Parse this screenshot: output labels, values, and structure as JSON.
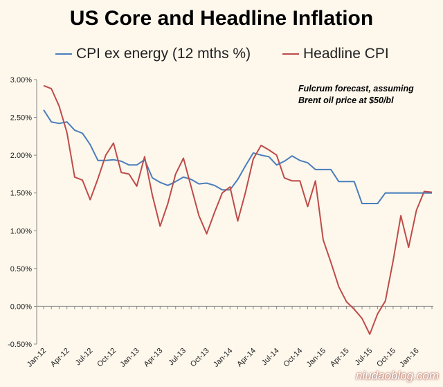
{
  "chart_data": {
    "type": "line",
    "title": "US Core and Headline Inflation",
    "xlabel": "",
    "ylabel": "",
    "ylim": [
      -0.5,
      3.0
    ],
    "y_ticks": [
      "-0.50%",
      "0.00%",
      "0.50%",
      "1.00%",
      "1.50%",
      "2.00%",
      "2.50%",
      "3.00%"
    ],
    "y_tick_values": [
      -0.5,
      0.0,
      0.5,
      1.0,
      1.5,
      2.0,
      2.5,
      3.0
    ],
    "x_tick_labels": [
      "Jan-12",
      "Apr-12",
      "Jul-12",
      "Oct-12",
      "Jan-13",
      "Apr-13",
      "Jul-13",
      "Oct-13",
      "Jan-14",
      "Apr-14",
      "Jul-14",
      "Oct-14",
      "Jan-15",
      "Apr-15",
      "Jul-15",
      "Oct-15",
      "Jan-16"
    ],
    "x_tick_indices": [
      0,
      3,
      6,
      9,
      12,
      15,
      18,
      21,
      24,
      27,
      30,
      33,
      36,
      39,
      42,
      45,
      48
    ],
    "n_points": 51,
    "series": [
      {
        "name": "CPI ex energy (12 mths %)",
        "color": "#4a7ebb",
        "values": [
          2.6,
          2.44,
          2.42,
          2.44,
          2.33,
          2.29,
          2.14,
          1.93,
          1.93,
          1.94,
          1.92,
          1.87,
          1.87,
          1.94,
          1.7,
          1.64,
          1.6,
          1.65,
          1.71,
          1.68,
          1.62,
          1.63,
          1.6,
          1.54,
          1.54,
          1.68,
          1.86,
          2.03,
          2.0,
          1.98,
          1.87,
          1.92,
          1.99,
          1.93,
          1.9,
          1.81,
          1.81,
          1.81,
          1.65,
          1.65,
          1.65,
          1.36,
          1.36,
          1.36,
          1.5,
          1.5,
          1.5,
          1.5,
          1.5,
          1.5,
          1.5
        ]
      },
      {
        "name": "Headline CPI",
        "color": "#be4b48",
        "values": [
          2.92,
          2.88,
          2.65,
          2.3,
          1.71,
          1.67,
          1.41,
          1.69,
          2.0,
          2.16,
          1.77,
          1.75,
          1.59,
          1.98,
          1.47,
          1.06,
          1.36,
          1.75,
          1.96,
          1.58,
          1.2,
          0.96,
          1.24,
          1.5,
          1.58,
          1.13,
          1.51,
          1.95,
          2.13,
          2.07,
          2.0,
          1.7,
          1.66,
          1.66,
          1.32,
          1.66,
          0.88,
          0.58,
          0.26,
          0.06,
          -0.04,
          -0.16,
          -0.37,
          -0.1,
          0.07,
          0.6,
          1.2,
          0.78,
          1.27,
          1.52,
          1.51
        ]
      }
    ],
    "annotation_lines": [
      "Fulcrum forecast, assuming",
      "Brent oil price at $50/bl"
    ],
    "legend_position": "top"
  },
  "watermark": "niudaoblog.com"
}
